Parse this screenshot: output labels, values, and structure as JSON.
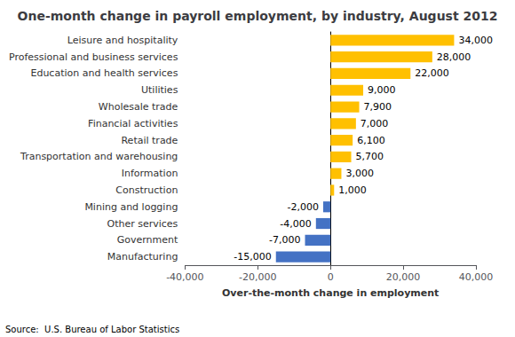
{
  "chart_data": {
    "type": "bar",
    "orientation": "horizontal",
    "title": "One-month change in payroll employment, by industry, August 2012",
    "xlabel": "Over-the-month change in employment",
    "annotations": [
      "Source:  U.S. Bureau of Labor Statistics"
    ],
    "categories": [
      "Manufacturing",
      "Government",
      "Other services",
      "Mining and logging",
      "Construction",
      "Information",
      "Transportation and warehousing",
      "Retail trade",
      "Financial activities",
      "Wholesale trade",
      "Utilities",
      "Education and health services",
      "Professional and business services",
      "Leisure and hospitality"
    ],
    "values": [
      -15000,
      -7000,
      -4000,
      -2000,
      1000,
      3000,
      5700,
      6100,
      7000,
      7900,
      9000,
      22000,
      28000,
      34000
    ],
    "value_labels": [
      "-15,000",
      "-7,000",
      "-4,000",
      "-2,000",
      "1,000",
      "3,000",
      "5,700",
      "6,100",
      "7,000",
      "7,900",
      "9,000",
      "22,000",
      "28,000",
      "34,000"
    ],
    "colors": [
      "#4472C4",
      "#4472C4",
      "#4472C4",
      "#4472C4",
      "#FFC000",
      "#FFC000",
      "#FFC000",
      "#FFC000",
      "#FFC000",
      "#FFC000",
      "#FFC000",
      "#FFC000",
      "#FFC000",
      "#FFC000"
    ],
    "xlim": [
      -40000,
      40000
    ],
    "xticks": [
      {
        "value": -40000,
        "label": "-40,000"
      },
      {
        "value": -20000,
        "label": "-20,000"
      },
      0,
      {
        "value": 20000,
        "label": "20,000"
      },
      {
        "value": 40000,
        "label": "40,000"
      }
    ],
    "data_labels": true,
    "grid": false
  }
}
